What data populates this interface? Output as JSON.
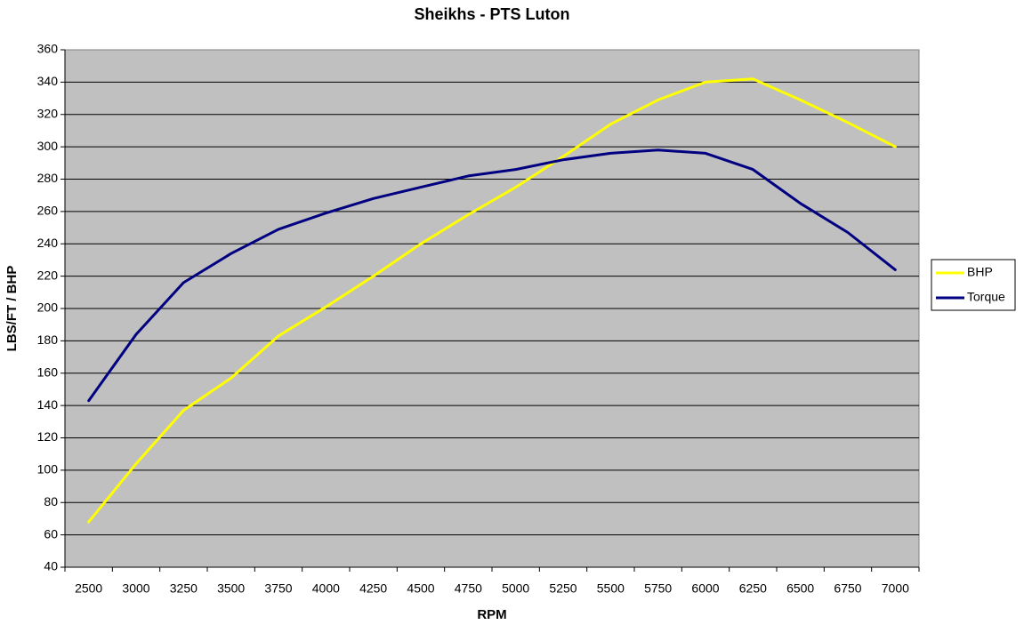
{
  "chart_data": {
    "type": "line",
    "title": "Sheikhs - PTS Luton",
    "x_label": "RPM",
    "y_label": "LBS/FT / BHP",
    "categories": [
      "2500",
      "3000",
      "3250",
      "3500",
      "3750",
      "4000",
      "4250",
      "4500",
      "4750",
      "5000",
      "5250",
      "5500",
      "5750",
      "6000",
      "6250",
      "6500",
      "6750",
      "7000"
    ],
    "series": [
      {
        "name": "BHP",
        "color": "#ffff00",
        "values": [
          68,
          104,
          137,
          157,
          183,
          201,
          220,
          240,
          258,
          275,
          294,
          314,
          329,
          340,
          342,
          329,
          315,
          300
        ]
      },
      {
        "name": "Torque",
        "color": "#000080",
        "values": [
          143,
          184,
          216,
          234,
          249,
          259,
          268,
          275,
          282,
          286,
          292,
          296,
          298,
          296,
          286,
          265,
          247,
          224
        ]
      }
    ],
    "ylim": [
      40,
      360
    ],
    "yticks": [
      40,
      60,
      80,
      100,
      120,
      140,
      160,
      180,
      200,
      220,
      240,
      260,
      280,
      300,
      320,
      340,
      360
    ],
    "grid": true,
    "legend": "right"
  }
}
